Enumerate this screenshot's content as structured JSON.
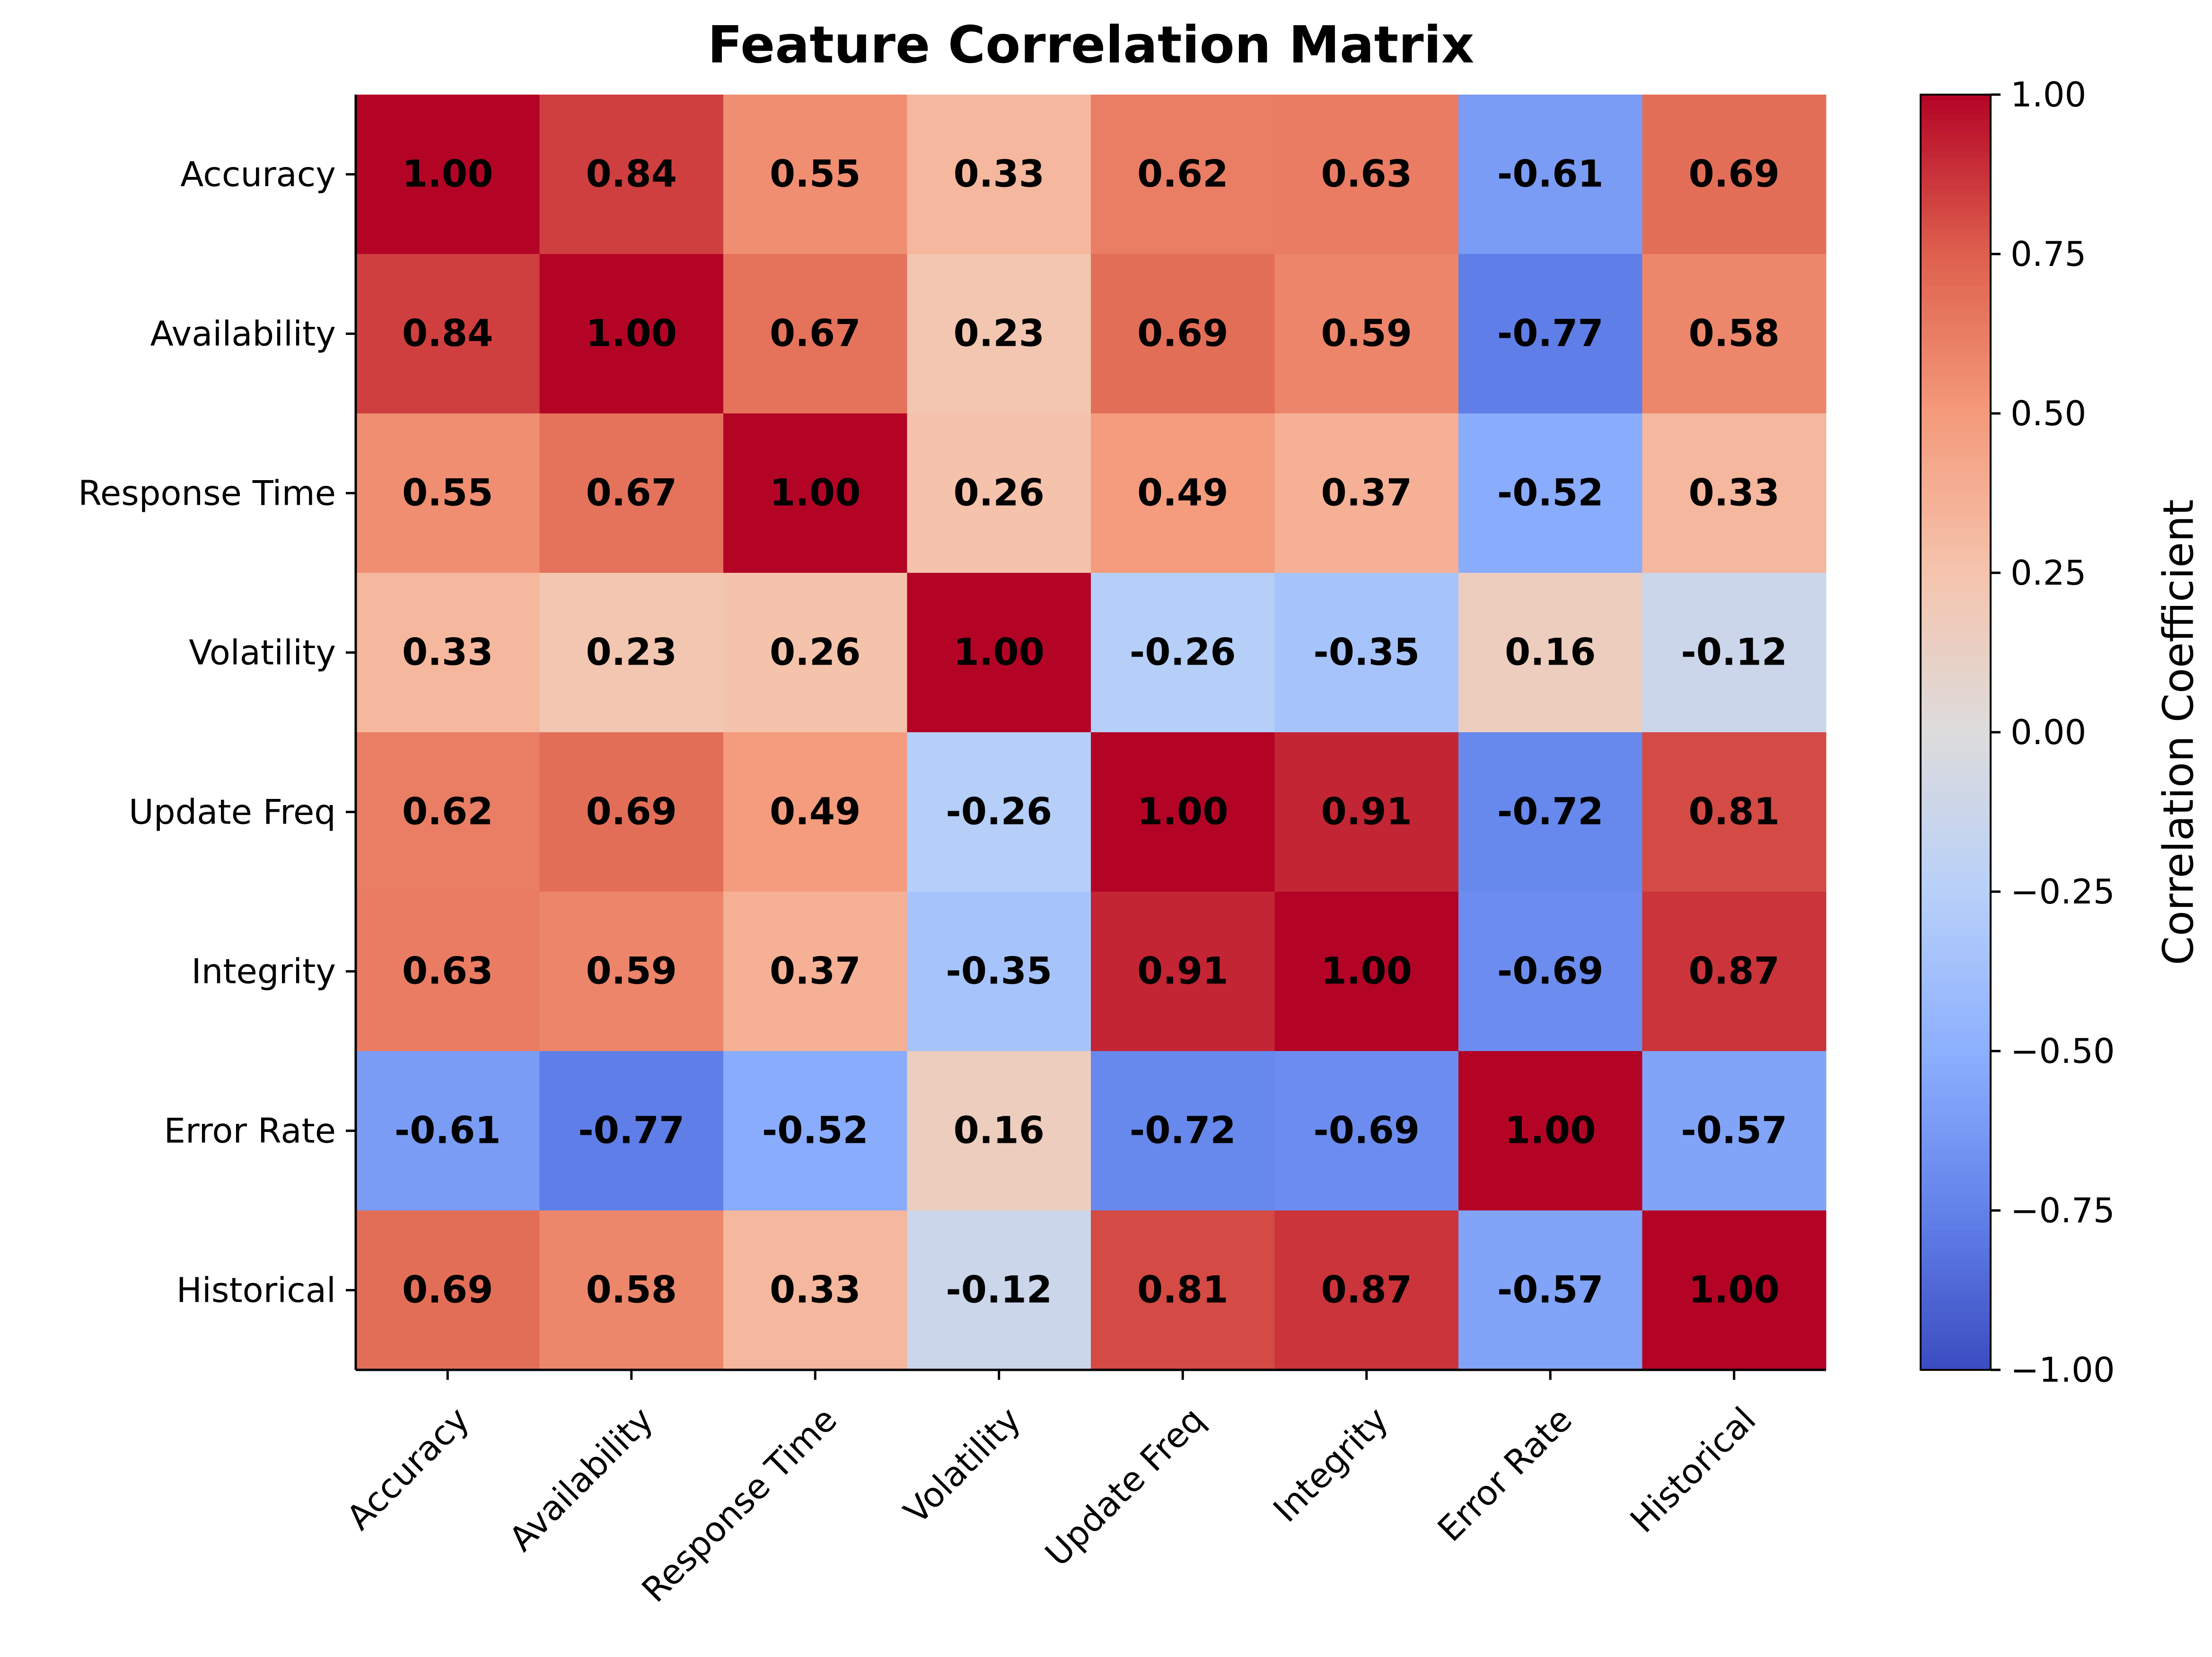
{
  "chart_data": {
    "type": "heatmap",
    "title": "Feature Correlation Matrix",
    "categories": [
      "Accuracy",
      "Availability",
      "Response Time",
      "Volatility",
      "Update Freq",
      "Integrity",
      "Error Rate",
      "Historical"
    ],
    "row_labels": [
      "Accuracy",
      "Availability",
      "Response Time",
      "Volatility",
      "Update Freq",
      "Integrity",
      "Error Rate",
      "Historical"
    ],
    "col_labels": [
      "Accuracy",
      "Availability",
      "Response Time",
      "Volatility",
      "Update Freq",
      "Integrity",
      "Error Rate",
      "Historical"
    ],
    "values": [
      [
        1.0,
        0.84,
        0.55,
        0.33,
        0.62,
        0.63,
        -0.61,
        0.69
      ],
      [
        0.84,
        1.0,
        0.67,
        0.23,
        0.69,
        0.59,
        -0.77,
        0.58
      ],
      [
        0.55,
        0.67,
        1.0,
        0.26,
        0.49,
        0.37,
        -0.52,
        0.33
      ],
      [
        0.33,
        0.23,
        0.26,
        1.0,
        -0.26,
        -0.35,
        0.16,
        -0.12
      ],
      [
        0.62,
        0.69,
        0.49,
        -0.26,
        1.0,
        0.91,
        -0.72,
        0.81
      ],
      [
        0.63,
        0.59,
        0.37,
        -0.35,
        0.91,
        1.0,
        -0.69,
        0.87
      ],
      [
        -0.61,
        -0.77,
        -0.52,
        0.16,
        -0.72,
        -0.69,
        1.0,
        -0.57
      ],
      [
        0.69,
        0.58,
        0.33,
        -0.12,
        0.81,
        0.87,
        -0.57,
        1.0
      ]
    ],
    "value_format_decimals": 2,
    "colormap": "coolwarm",
    "vmin": -1.0,
    "vmax": 1.0,
    "colorbar": {
      "label": "Correlation Coefficient",
      "ticks": [
        1.0,
        0.75,
        0.5,
        0.25,
        0.0,
        -0.25,
        -0.5,
        -0.75,
        -1.0
      ],
      "tick_labels": [
        "1.00",
        "0.75",
        "0.50",
        "0.25",
        "0.00",
        "−0.25",
        "−0.50",
        "−0.75",
        "−1.00"
      ],
      "placement": "right"
    },
    "grid": false,
    "legend": "none",
    "x_tick_rotation_deg": 45
  }
}
